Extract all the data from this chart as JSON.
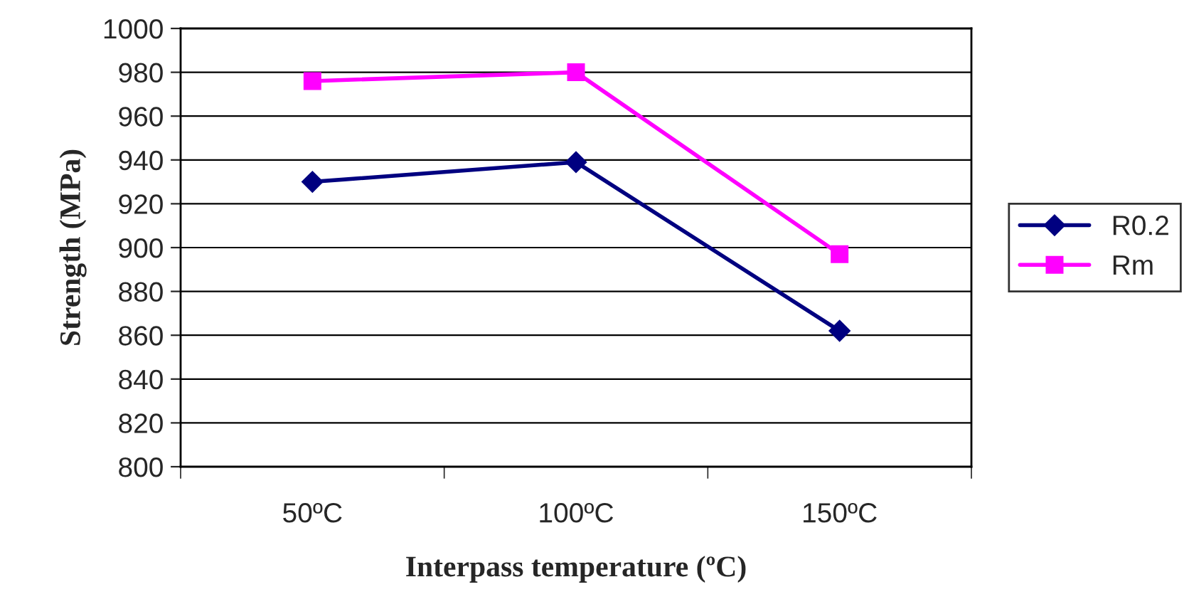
{
  "chart_data": {
    "type": "line",
    "xlabel": "Interpass temperature (ºC)",
    "ylabel": "Strength (MPa)",
    "categories": [
      "50ºC",
      "100ºC",
      "150ºC"
    ],
    "series": [
      {
        "name": "R0.2",
        "color": "#000080",
        "values": [
          930,
          939,
          862
        ],
        "marker": "diamond"
      },
      {
        "name": "Rm",
        "color": "#ff00ff",
        "values": [
          976,
          980,
          897
        ],
        "marker": "square"
      }
    ],
    "ylim": [
      800,
      1000
    ],
    "yticks": [
      800,
      820,
      840,
      860,
      880,
      900,
      920,
      940,
      960,
      980,
      1000
    ],
    "grid": "y",
    "legend": "right",
    "line_style": "solid"
  }
}
